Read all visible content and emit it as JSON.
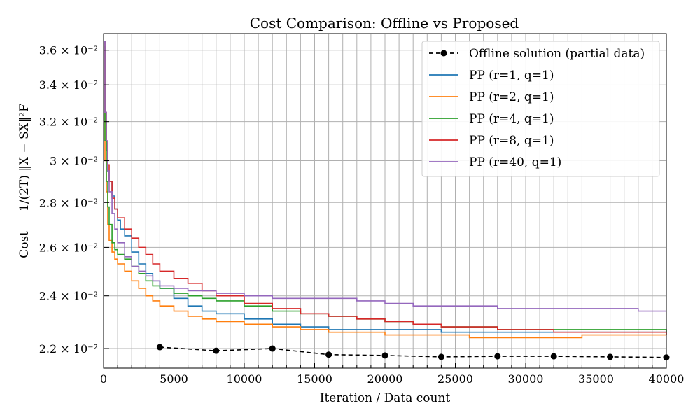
{
  "chart_data": {
    "type": "line",
    "title": "Cost Comparison: Offline vs Proposed",
    "xlabel": "Iteration / Data count",
    "ylabel": "Cost",
    "ylabel_formula": "1/(2T) ‖X − SX‖²F",
    "xlim": [
      0,
      40000
    ],
    "ylim": [
      0.0213,
      0.037
    ],
    "y_scale": "log",
    "grid": true,
    "legend_position": "top-right",
    "x_ticks": [
      {
        "value": 0,
        "label": "0"
      },
      {
        "value": 5000,
        "label": "5000"
      },
      {
        "value": 10000,
        "label": "10000"
      },
      {
        "value": 15000,
        "label": "15000"
      },
      {
        "value": 20000,
        "label": "20000"
      },
      {
        "value": 25000,
        "label": "25000"
      },
      {
        "value": 30000,
        "label": "30000"
      },
      {
        "value": 35000,
        "label": "35000"
      },
      {
        "value": 40000,
        "label": "40000"
      }
    ],
    "y_ticks": [
      {
        "value": 0.022,
        "label": "2.2 × 10⁻²"
      },
      {
        "value": 0.024,
        "label": "2.4 × 10⁻²"
      },
      {
        "value": 0.026,
        "label": "2.6 × 10⁻²"
      },
      {
        "value": 0.028,
        "label": "2.8 × 10⁻²"
      },
      {
        "value": 0.03,
        "label": "3 × 10⁻²"
      },
      {
        "value": 0.032,
        "label": "3.2 × 10⁻²"
      },
      {
        "value": 0.034,
        "label": "3.4 × 10⁻²"
      },
      {
        "value": 0.036,
        "label": "3.6 × 10⁻²"
      }
    ],
    "series": [
      {
        "name": "Offline solution (partial data)",
        "color": "#000000",
        "style": "dashed-marker",
        "x": [
          4000,
          8000,
          12000,
          16000,
          20000,
          24000,
          28000,
          32000,
          36000,
          40000
        ],
        "y": [
          0.02205,
          0.02192,
          0.022,
          0.02178,
          0.02175,
          0.0217,
          0.02172,
          0.02172,
          0.0217,
          0.02168
        ]
      },
      {
        "name": "PP (r=1, q=1)",
        "color": "#1f77b4",
        "style": "step",
        "x": [
          0,
          100,
          200,
          300,
          400,
          600,
          800,
          1000,
          1200,
          1500,
          2000,
          2500,
          3000,
          3500,
          4000,
          5000,
          6000,
          7000,
          8000,
          10000,
          12000,
          14000,
          16000,
          18000,
          20000,
          22000,
          24000,
          26000,
          28000,
          30000,
          32000,
          34000,
          36000,
          38000,
          40000
        ],
        "y": [
          0.0365,
          0.032,
          0.0305,
          0.0295,
          0.029,
          0.0283,
          0.0277,
          0.0272,
          0.0268,
          0.0265,
          0.0258,
          0.0253,
          0.0249,
          0.0246,
          0.0243,
          0.0239,
          0.0236,
          0.0234,
          0.0233,
          0.0231,
          0.0229,
          0.0228,
          0.0227,
          0.0227,
          0.0227,
          0.0227,
          0.0226,
          0.0226,
          0.0226,
          0.0226,
          0.0226,
          0.0226,
          0.0226,
          0.0226,
          0.0226
        ]
      },
      {
        "name": "PP (r=2, q=1)",
        "color": "#ff7f0e",
        "style": "step",
        "x": [
          0,
          100,
          200,
          300,
          400,
          600,
          800,
          1000,
          1500,
          2000,
          2500,
          3000,
          3500,
          4000,
          5000,
          6000,
          7000,
          8000,
          10000,
          12000,
          14000,
          16000,
          18000,
          20000,
          22000,
          24000,
          26000,
          28000,
          30000,
          32000,
          34000,
          36000,
          38000,
          40000
        ],
        "y": [
          0.036,
          0.03,
          0.0285,
          0.027,
          0.0263,
          0.0258,
          0.0255,
          0.0253,
          0.025,
          0.0246,
          0.0243,
          0.024,
          0.0238,
          0.0236,
          0.0234,
          0.0232,
          0.0231,
          0.023,
          0.0229,
          0.0228,
          0.0227,
          0.0226,
          0.0226,
          0.0225,
          0.0225,
          0.0225,
          0.0224,
          0.0224,
          0.0224,
          0.0224,
          0.0225,
          0.0225,
          0.0225,
          0.0225
        ]
      },
      {
        "name": "PP (r=4, q=1)",
        "color": "#2ca02c",
        "style": "step",
        "x": [
          0,
          100,
          200,
          300,
          400,
          600,
          800,
          1000,
          1500,
          2000,
          2500,
          3000,
          3500,
          4000,
          5000,
          6000,
          7000,
          8000,
          10000,
          12000,
          14000,
          16000,
          18000,
          20000,
          22000,
          24000,
          26000,
          28000,
          30000,
          32000,
          34000,
          36000,
          38000,
          40000
        ],
        "y": [
          0.0362,
          0.031,
          0.029,
          0.0278,
          0.027,
          0.0262,
          0.0259,
          0.0257,
          0.0255,
          0.0252,
          0.0249,
          0.0246,
          0.0244,
          0.0243,
          0.0241,
          0.024,
          0.0239,
          0.0238,
          0.0236,
          0.0234,
          0.0233,
          0.0232,
          0.0231,
          0.023,
          0.0229,
          0.0228,
          0.0228,
          0.0227,
          0.0227,
          0.0227,
          0.0227,
          0.0227,
          0.0227,
          0.0226
        ]
      },
      {
        "name": "PP (r=8, q=1)",
        "color": "#d62728",
        "style": "step",
        "x": [
          0,
          100,
          200,
          300,
          400,
          600,
          800,
          1000,
          1500,
          2000,
          2500,
          3000,
          3500,
          4000,
          5000,
          6000,
          7000,
          8000,
          10000,
          12000,
          14000,
          16000,
          18000,
          20000,
          22000,
          24000,
          26000,
          28000,
          30000,
          32000,
          34000,
          36000,
          38000,
          40000
        ],
        "y": [
          0.0365,
          0.0325,
          0.031,
          0.0298,
          0.029,
          0.0282,
          0.0277,
          0.0273,
          0.0268,
          0.0264,
          0.026,
          0.0257,
          0.0253,
          0.025,
          0.0247,
          0.0245,
          0.0242,
          0.024,
          0.0237,
          0.0235,
          0.0233,
          0.0232,
          0.0231,
          0.023,
          0.0229,
          0.0228,
          0.0228,
          0.0227,
          0.0227,
          0.0226,
          0.0226,
          0.0226,
          0.0226,
          0.0225
        ]
      },
      {
        "name": "PP (r=40, q=1)",
        "color": "#9467bd",
        "style": "step",
        "x": [
          0,
          100,
          200,
          300,
          400,
          600,
          800,
          1000,
          1500,
          2000,
          2500,
          3000,
          3500,
          4000,
          5000,
          6000,
          7000,
          8000,
          10000,
          12000,
          14000,
          16000,
          18000,
          20000,
          22000,
          24000,
          26000,
          28000,
          30000,
          32000,
          34000,
          36000,
          38000,
          40000
        ],
        "y": [
          0.0365,
          0.0325,
          0.031,
          0.0295,
          0.0285,
          0.0275,
          0.0268,
          0.0262,
          0.0256,
          0.0252,
          0.025,
          0.0248,
          0.0246,
          0.0244,
          0.0243,
          0.0242,
          0.0242,
          0.0241,
          0.024,
          0.0239,
          0.0239,
          0.0239,
          0.0238,
          0.0237,
          0.0236,
          0.0236,
          0.0236,
          0.0235,
          0.0235,
          0.0235,
          0.0235,
          0.0235,
          0.0234,
          0.0234
        ]
      }
    ]
  }
}
